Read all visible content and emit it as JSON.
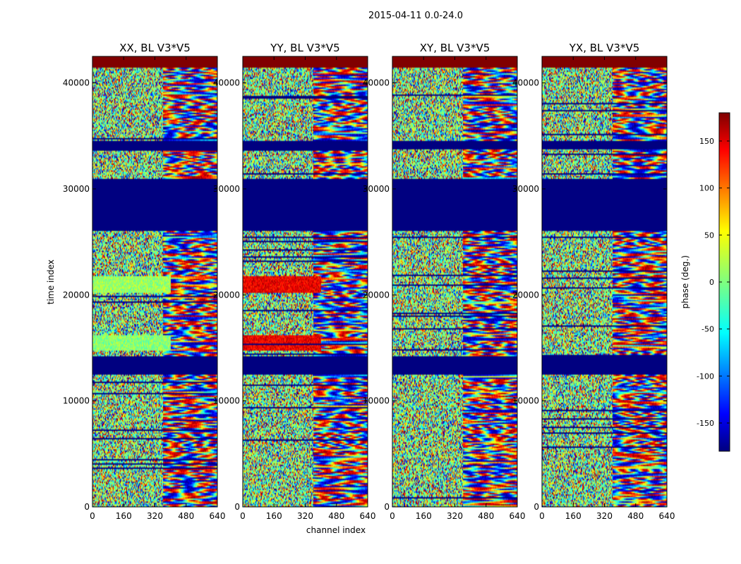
{
  "figure": {
    "suptitle": "2015-04-11 0.0-24.0"
  },
  "chart_data": {
    "type": "heatmap",
    "title": "2015-04-11 0.0-24.0",
    "xlabel": "channel index",
    "ylabel": "time index",
    "xlim": [
      0,
      640
    ],
    "ylim": [
      0,
      42500
    ],
    "xticks": [
      0,
      160,
      320,
      480,
      640
    ],
    "yticks": [
      0,
      10000,
      20000,
      30000,
      40000
    ],
    "panels": [
      {
        "title": "XX, BL V3*V5",
        "pol": "XX"
      },
      {
        "title": "YY, BL V3*V5",
        "pol": "YY"
      },
      {
        "title": "XY, BL V3*V5",
        "pol": "XY"
      },
      {
        "title": "YX, BL V3*V5",
        "pol": "YX"
      }
    ],
    "colorbar": {
      "label": "phase (deg.)",
      "range": [
        -180,
        180
      ],
      "ticks": [
        -150,
        -100,
        -50,
        0,
        50,
        100,
        150
      ],
      "colormap": "jet"
    },
    "flagged_time_ranges": [
      [
        12500,
        14200
      ],
      [
        26000,
        31000
      ],
      [
        33800,
        34500
      ],
      [
        41500,
        42500
      ]
    ],
    "coherent_blocks": [
      {
        "pol": "XX",
        "t": [
          20200,
          21800
        ],
        "ch": [
          0,
          400
        ],
        "phase_deg": 10
      },
      {
        "pol": "XX",
        "t": [
          14800,
          16200
        ],
        "ch": [
          0,
          400
        ],
        "phase_deg": 5
      },
      {
        "pol": "YY",
        "t": [
          20200,
          21800
        ],
        "ch": [
          0,
          400
        ],
        "phase_deg": 140
      },
      {
        "pol": "YY",
        "t": [
          14800,
          16200
        ],
        "ch": [
          0,
          400
        ],
        "phase_deg": 140
      }
    ]
  }
}
